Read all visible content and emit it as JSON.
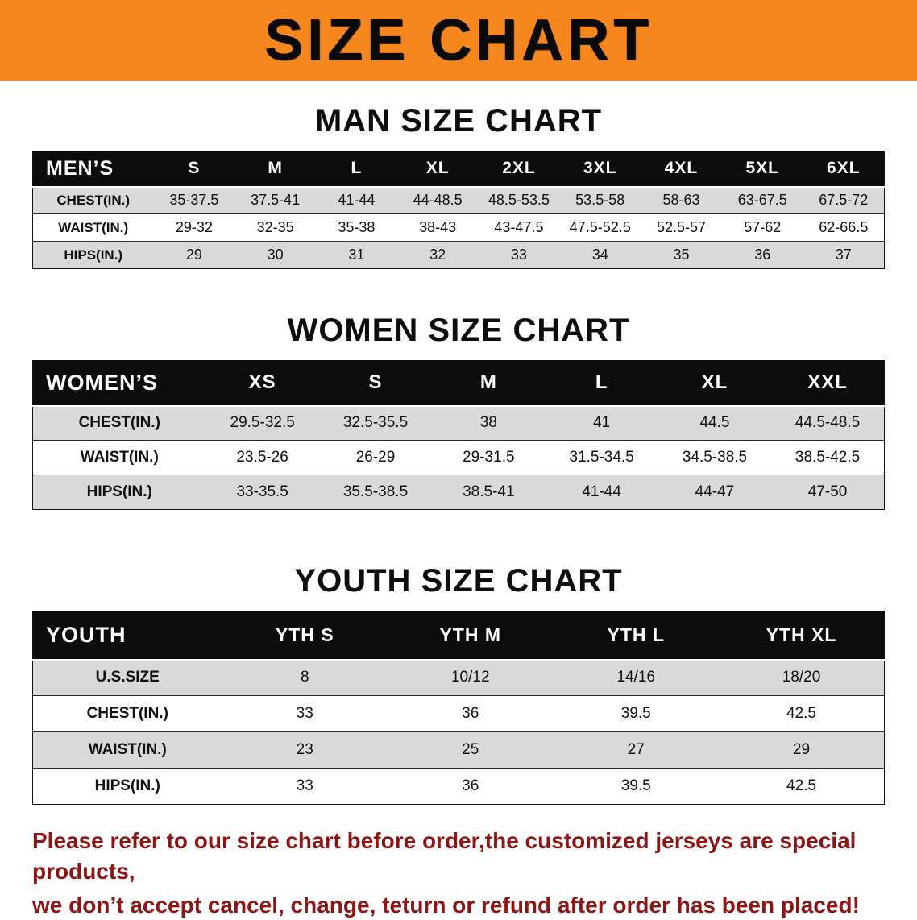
{
  "banner": {
    "title": "SIZE CHART",
    "bg_color": "#F6871E"
  },
  "sections": [
    {
      "heading": "MAN SIZE CHART",
      "table": {
        "header_label": "MEN’S",
        "columns": [
          "S",
          "M",
          "L",
          "XL",
          "2XL",
          "3XL",
          "4XL",
          "5XL",
          "6XL"
        ],
        "rows": [
          {
            "label": "CHEST(IN.)",
            "values": [
              "35-37.5",
              "37.5-41",
              "41-44",
              "44-48.5",
              "48.5-53.5",
              "53.5-58",
              "58-63",
              "63-67.5",
              "67.5-72"
            ]
          },
          {
            "label": "WAIST(IN.)",
            "values": [
              "29-32",
              "32-35",
              "35-38",
              "38-43",
              "43-47.5",
              "47.5-52.5",
              "52.5-57",
              "57-62",
              "62-66.5"
            ]
          },
          {
            "label": "HIPS(IN.)",
            "values": [
              "29",
              "30",
              "31",
              "32",
              "33",
              "34",
              "35",
              "36",
              "37"
            ]
          }
        ]
      }
    },
    {
      "heading": "WOMEN SIZE CHART",
      "table": {
        "header_label": "WOMEN’S",
        "columns": [
          "XS",
          "S",
          "M",
          "L",
          "XL",
          "XXL"
        ],
        "rows": [
          {
            "label": "CHEST(IN.)",
            "values": [
              "29.5-32.5",
              "32.5-35.5",
              "38",
              "41",
              "44.5",
              "44.5-48.5"
            ]
          },
          {
            "label": "WAIST(IN.)",
            "values": [
              "23.5-26",
              "26-29",
              "29-31.5",
              "31.5-34.5",
              "34.5-38.5",
              "38.5-42.5"
            ]
          },
          {
            "label": "HIPS(IN.)",
            "values": [
              "33-35.5",
              "35.5-38.5",
              "38.5-41",
              "41-44",
              "44-47",
              "47-50"
            ]
          }
        ]
      }
    },
    {
      "heading": "YOUTH SIZE CHART",
      "table": {
        "header_label": "YOUTH",
        "columns": [
          "YTH S",
          "YTH M",
          "YTH L",
          "YTH XL"
        ],
        "rows": [
          {
            "label": "U.S.SIZE",
            "values": [
              "8",
              "10/12",
              "14/16",
              "18/20"
            ]
          },
          {
            "label": "CHEST(IN.)",
            "values": [
              "33",
              "36",
              "39.5",
              "42.5"
            ]
          },
          {
            "label": "WAIST(IN.)",
            "values": [
              "23",
              "25",
              "27",
              "29"
            ]
          },
          {
            "label": "HIPS(IN.)",
            "values": [
              "33",
              "36",
              "39.5",
              "42.5"
            ]
          }
        ]
      }
    }
  ],
  "footer": {
    "line1": "Please refer to our size chart before order,the customized jerseys are special products,",
    "line2": "we don’t accept cancel, change, teturn or refund after order has been placed!"
  },
  "colors": {
    "banner_bg": "#F6871E",
    "table_header_bg": "#0C0C0C",
    "row_stripe": "#D9D9D9",
    "notice_text": "#8E1515"
  },
  "chart_data": [
    {
      "type": "table",
      "title": "MAN SIZE CHART",
      "columns": [
        "MEN’S",
        "S",
        "M",
        "L",
        "XL",
        "2XL",
        "3XL",
        "4XL",
        "5XL",
        "6XL"
      ],
      "rows": [
        [
          "CHEST(IN.)",
          "35-37.5",
          "37.5-41",
          "41-44",
          "44-48.5",
          "48.5-53.5",
          "53.5-58",
          "58-63",
          "63-67.5",
          "67.5-72"
        ],
        [
          "WAIST(IN.)",
          "29-32",
          "32-35",
          "35-38",
          "38-43",
          "43-47.5",
          "47.5-52.5",
          "52.5-57",
          "57-62",
          "62-66.5"
        ],
        [
          "HIPS(IN.)",
          "29",
          "30",
          "31",
          "32",
          "33",
          "34",
          "35",
          "36",
          "37"
        ]
      ]
    },
    {
      "type": "table",
      "title": "WOMEN SIZE CHART",
      "columns": [
        "WOMEN’S",
        "XS",
        "S",
        "M",
        "L",
        "XL",
        "XXL"
      ],
      "rows": [
        [
          "CHEST(IN.)",
          "29.5-32.5",
          "32.5-35.5",
          "38",
          "41",
          "44.5",
          "44.5-48.5"
        ],
        [
          "WAIST(IN.)",
          "23.5-26",
          "26-29",
          "29-31.5",
          "31.5-34.5",
          "34.5-38.5",
          "38.5-42.5"
        ],
        [
          "HIPS(IN.)",
          "33-35.5",
          "35.5-38.5",
          "38.5-41",
          "41-44",
          "44-47",
          "47-50"
        ]
      ]
    },
    {
      "type": "table",
      "title": "YOUTH SIZE CHART",
      "columns": [
        "YOUTH",
        "YTH S",
        "YTH M",
        "YTH L",
        "YTH XL"
      ],
      "rows": [
        [
          "U.S.SIZE",
          "8",
          "10/12",
          "14/16",
          "18/20"
        ],
        [
          "CHEST(IN.)",
          "33",
          "36",
          "39.5",
          "42.5"
        ],
        [
          "WAIST(IN.)",
          "23",
          "25",
          "27",
          "29"
        ],
        [
          "HIPS(IN.)",
          "33",
          "36",
          "39.5",
          "42.5"
        ]
      ]
    }
  ]
}
